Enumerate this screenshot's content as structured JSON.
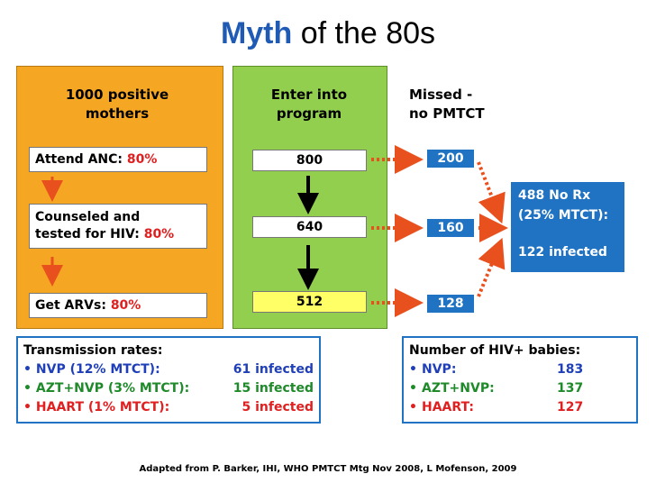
{
  "title": {
    "emphasis": "Myth",
    "rest": " of the 80s"
  },
  "columns": {
    "left_header": [
      "1000 positive",
      "mothers"
    ],
    "middle_header": [
      "Enter into",
      "program"
    ],
    "right_header": [
      "Missed -",
      "no  PMTCT"
    ]
  },
  "steps": [
    {
      "label": "Attend ANC: ",
      "pct": "80%"
    },
    {
      "label_line1": "Counseled and",
      "label_line2": "tested for HIV: ",
      "pct": "80%"
    },
    {
      "label": "Get ARVs: ",
      "pct": "80%"
    }
  ],
  "enter_counts": [
    "800",
    "640",
    "512"
  ],
  "missed_counts": [
    "200",
    "160",
    "128"
  ],
  "no_rx": {
    "line1": "488 No Rx",
    "line2": "(25% MTCT):",
    "line3": "122 infected"
  },
  "transmission": {
    "heading": "Transmission rates:",
    "rows": [
      {
        "label": "NVP (12% MTCT):",
        "value": "61 infected"
      },
      {
        "label": "AZT+NVP (3% MTCT):",
        "value": "15 infected"
      },
      {
        "label": "HAART (1% MTCT):",
        "value": "5 infected"
      }
    ]
  },
  "babies": {
    "heading": "Number of HIV+ babies:",
    "rows": [
      {
        "label": "NVP:",
        "value": "183"
      },
      {
        "label": "AZT+NVP:",
        "value": "137"
      },
      {
        "label": "HAART:",
        "value": "127"
      }
    ]
  },
  "bullet": "•",
  "colors": {
    "title_accent": "#1f5bb5",
    "orange_panel": "#f5a623",
    "green_panel": "#92cf4f",
    "blue_box": "#1f73c2",
    "red": "#e02020",
    "highlight_box": "#ffff66"
  },
  "footer": "Adapted from P. Barker, IHI, WHO PMTCT Mtg Nov 2008, L Mofenson, 2009"
}
